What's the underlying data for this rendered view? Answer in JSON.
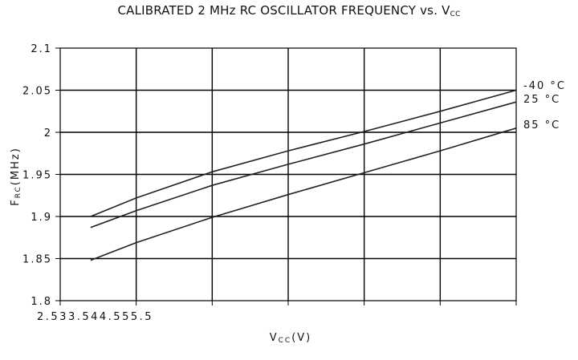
{
  "chart_data": {
    "type": "line",
    "title": "CALIBRATED 2 MHz RC OSCILLATOR FREQUENCY vs. V",
    "title_sub": "CC",
    "xlabel_main": "V",
    "xlabel_sub": "CC",
    "xlabel_unit": "(V)",
    "ylabel_main": "F",
    "ylabel_sub": "RC",
    "ylabel_unit": "(MHz)",
    "x_tick_text": "2.533.544.555.5",
    "y_tick_labels": [
      "2.1",
      "2.05",
      "2",
      "1.95",
      "1.9",
      "1.85",
      "1.8"
    ],
    "y_ticks": [
      2.1,
      2.05,
      2.0,
      1.95,
      1.9,
      1.85,
      1.8
    ],
    "x_ticks": [
      2.5,
      3,
      3.5,
      4,
      4.5,
      5,
      5.5
    ],
    "xlim": [
      2.5,
      5.5
    ],
    "ylim": [
      1.8,
      2.1
    ],
    "grid": true,
    "x": [
      2.7,
      3.0,
      3.5,
      4.0,
      4.5,
      5.0,
      5.5
    ],
    "series": [
      {
        "name": "-40 °C",
        "values": [
          1.9,
          1.922,
          1.953,
          1.978,
          2.001,
          2.025,
          2.05
        ]
      },
      {
        "name": "25 °C",
        "values": [
          1.887,
          1.907,
          1.937,
          1.962,
          1.986,
          2.011,
          2.036
        ]
      },
      {
        "name": "85 °C",
        "values": [
          1.848,
          1.869,
          1.899,
          1.926,
          1.952,
          1.978,
          2.005
        ]
      }
    ]
  }
}
